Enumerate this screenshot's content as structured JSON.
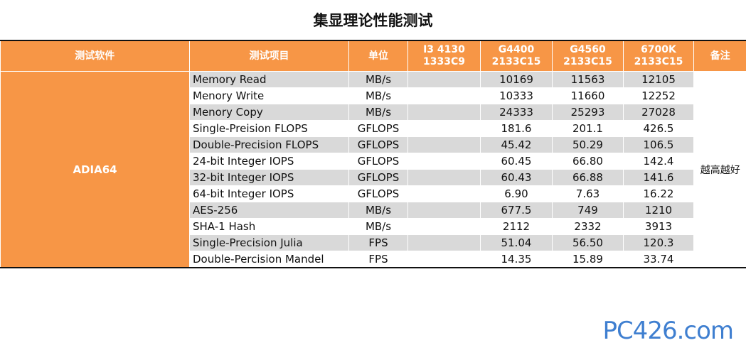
{
  "title": "集显理论性能测试",
  "headers": {
    "software": "测试软件",
    "item": "测试项目",
    "unit": "单位",
    "cpu1": [
      "I3 4130",
      "1333C9"
    ],
    "cpu2": [
      "G4400",
      "2133C15"
    ],
    "cpu3": [
      "G4560",
      "2133C15"
    ],
    "cpu4": [
      "6700K",
      "2133C15"
    ],
    "note": "备注"
  },
  "software": "ADIA64",
  "note": "越高越好",
  "rows": [
    {
      "item": "Memory Read",
      "unit": "MB/s",
      "v1": "",
      "v2": "10169",
      "v3": "11563",
      "v4": "12105"
    },
    {
      "item": "Menory Write",
      "unit": "MB/s",
      "v1": "",
      "v2": "10333",
      "v3": "11660",
      "v4": "12252"
    },
    {
      "item": "Menory Copy",
      "unit": "MB/s",
      "v1": "",
      "v2": "24333",
      "v3": "25293",
      "v4": "27028"
    },
    {
      "item": "Single-Preision FLOPS",
      "unit": "GFLOPS",
      "v1": "",
      "v2": "181.6",
      "v3": "201.1",
      "v4": "426.5"
    },
    {
      "item": "Double-Precision FLOPS",
      "unit": "GFLOPS",
      "v1": "",
      "v2": "45.42",
      "v3": "50.29",
      "v4": "106.5"
    },
    {
      "item": "24-bit Integer IOPS",
      "unit": "GFLOPS",
      "v1": "",
      "v2": "60.45",
      "v3": "66.80",
      "v4": "142.4"
    },
    {
      "item": "32-bit Integer IOPS",
      "unit": "GFLOPS",
      "v1": "",
      "v2": "60.43",
      "v3": "66.88",
      "v4": "141.6"
    },
    {
      "item": "64-bit Integer IOPS",
      "unit": "GFLOPS",
      "v1": "",
      "v2": "6.90",
      "v3": "7.63",
      "v4": "16.22"
    },
    {
      "item": "AES-256",
      "unit": "MB/s",
      "v1": "",
      "v2": "677.5",
      "v3": "749",
      "v4": "1210"
    },
    {
      "item": "SHA-1 Hash",
      "unit": "MB/s",
      "v1": "",
      "v2": "2112",
      "v3": "2332",
      "v4": "3913"
    },
    {
      "item": "Single-Precision Julia",
      "unit": "FPS",
      "v1": "",
      "v2": "51.04",
      "v3": "56.50",
      "v4": "120.3"
    },
    {
      "item": "Double-Percision Mandel",
      "unit": "FPS",
      "v1": "",
      "v2": "14.35",
      "v3": "15.89",
      "v4": "33.74"
    }
  ],
  "watermark": "PC426.com",
  "colors": {
    "header": "#f79646",
    "stripe": "#d9d9d9",
    "watermark": "#3f7fd0"
  }
}
